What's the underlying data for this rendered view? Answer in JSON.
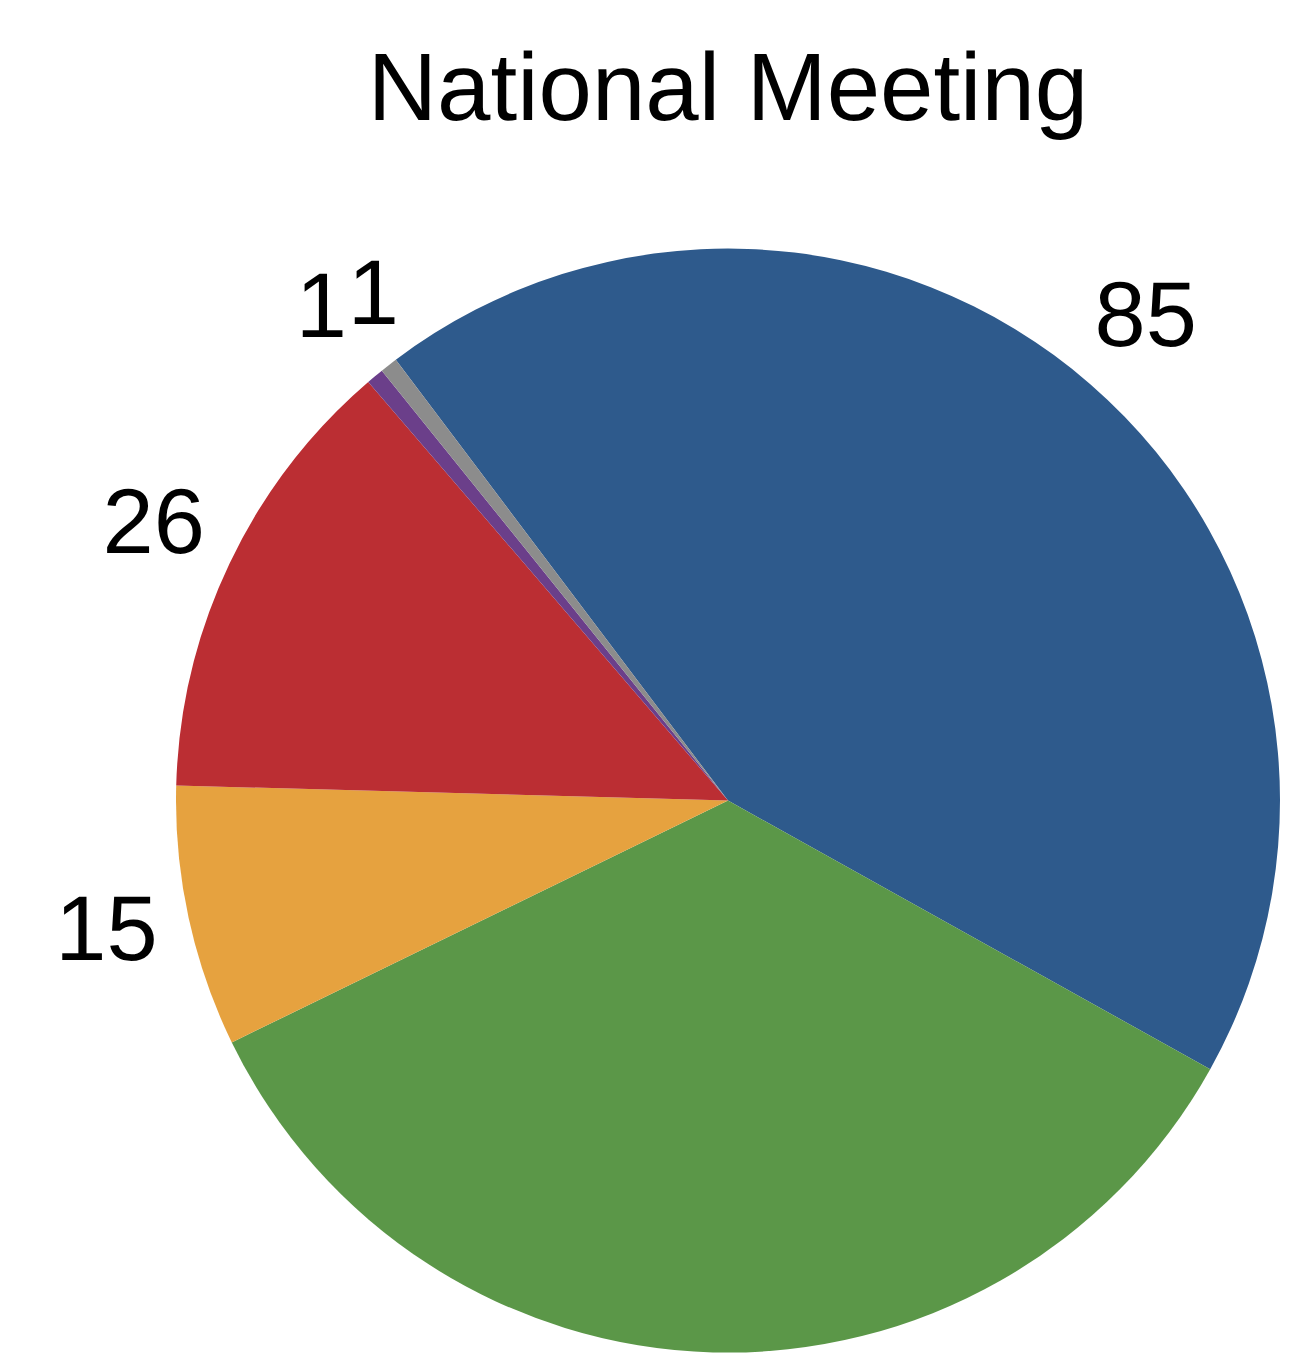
{
  "chart_data": {
    "type": "pie",
    "title": "National Meeting",
    "categories": [
      null,
      null,
      null,
      null,
      null,
      null
    ],
    "values": [
      85,
      68,
      15,
      26,
      1,
      1
    ],
    "value_labels": [
      "85",
      null,
      "15",
      "26",
      "1",
      "1"
    ],
    "colors": [
      "#2e5a8c",
      "#5b9748",
      "#e6a23f",
      "#bb2e33",
      "#6b3f8a",
      "#8c8c8c"
    ],
    "legend": false
  }
}
